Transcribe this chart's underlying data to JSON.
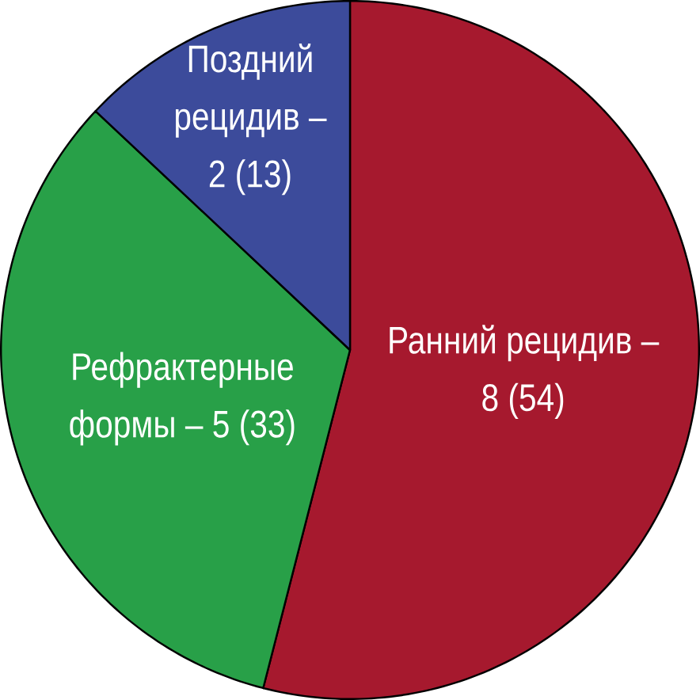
{
  "chart_data": {
    "type": "pie",
    "categories": [
      "Ранний рецидив – 8 (54)",
      "Рефрактерные формы – 5 (33)",
      "Поздний рецидив – 2 (13)"
    ],
    "values": [
      54,
      33,
      13
    ],
    "colors": [
      "#a6192e",
      "#28a048",
      "#3c4b9b"
    ]
  }
}
